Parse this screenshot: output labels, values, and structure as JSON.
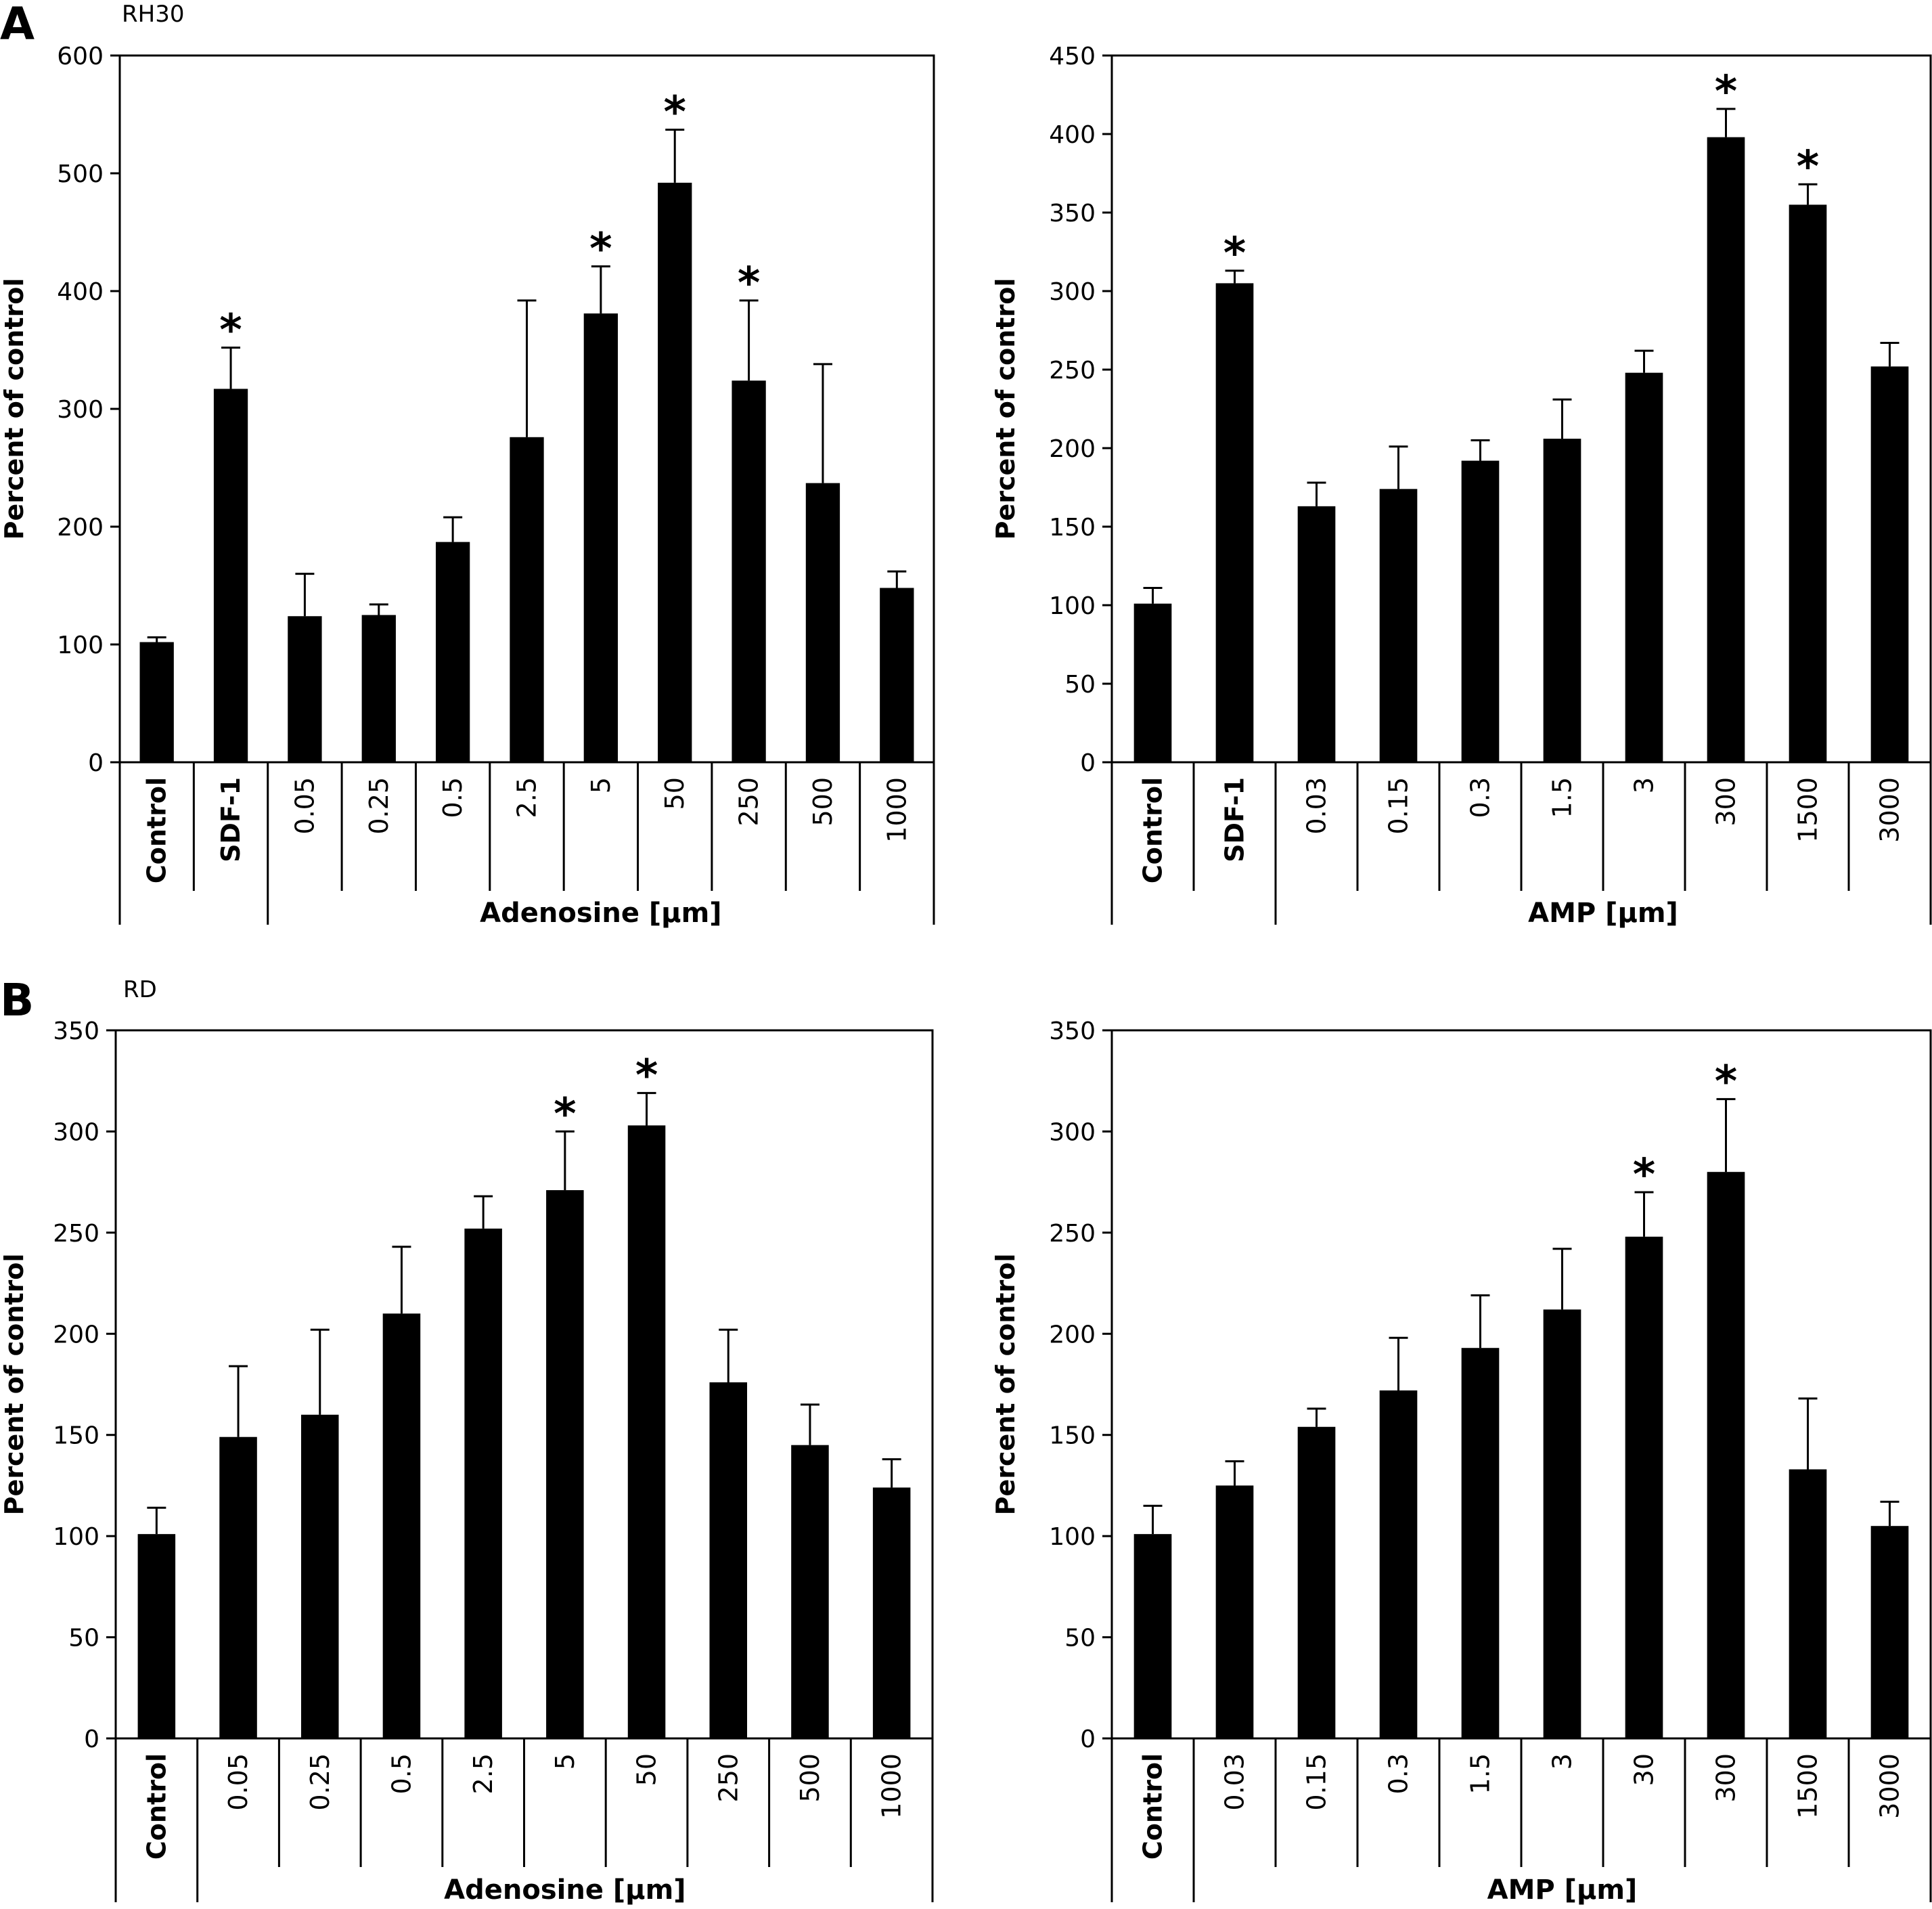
{
  "panel_labels": {
    "a": "A",
    "b": "B"
  },
  "sample_labels": {
    "a": "RH30",
    "b": "RD"
  },
  "colors": {
    "bar": "#000000",
    "axis": "#000000",
    "background": "#ffffff"
  },
  "chart_data": [
    {
      "type": "bar",
      "ylabel": "Percent of control",
      "group_label": "Adenosine [µm]",
      "ylim": [
        0,
        600
      ],
      "yticks": [
        0,
        100,
        200,
        300,
        400,
        500,
        600
      ],
      "categories": [
        "Control",
        "SDF-1",
        "0.05",
        "0.25",
        "0.5",
        "2.5",
        "5",
        "50",
        "250",
        "500",
        "1000"
      ],
      "bold_categories": [
        "Control",
        "SDF-1"
      ],
      "values": [
        102,
        317,
        124,
        125,
        187,
        276,
        381,
        492,
        324,
        237,
        148
      ],
      "errors": [
        4,
        35,
        36,
        9,
        21,
        116,
        40,
        45,
        68,
        101,
        14
      ],
      "significant": [
        false,
        true,
        false,
        false,
        false,
        false,
        true,
        true,
        true,
        false,
        false
      ],
      "significance_marker": "*",
      "group_start_index": 2
    },
    {
      "type": "bar",
      "ylabel": "Percent of control",
      "group_label": "AMP [µm]",
      "ylim": [
        0,
        450
      ],
      "yticks": [
        0,
        50,
        100,
        150,
        200,
        250,
        300,
        350,
        400,
        450
      ],
      "categories": [
        "Control",
        "SDF-1",
        "0.03",
        "0.15",
        "0.3",
        "1.5",
        "3",
        "300",
        "1500",
        "3000"
      ],
      "bold_categories": [
        "Control",
        "SDF-1"
      ],
      "values": [
        101,
        305,
        163,
        174,
        192,
        206,
        248,
        398,
        355,
        252
      ],
      "errors": [
        10,
        8,
        15,
        27,
        13,
        25,
        14,
        18,
        13,
        15
      ],
      "significant": [
        false,
        true,
        false,
        false,
        false,
        false,
        false,
        true,
        true,
        false
      ],
      "significance_marker": "*",
      "group_start_index": 2
    },
    {
      "type": "bar",
      "ylabel": "Percent of control",
      "group_label": "Adenosine [µm]",
      "ylim": [
        0,
        350
      ],
      "yticks": [
        0,
        50,
        100,
        150,
        200,
        250,
        300,
        350
      ],
      "categories": [
        "Control",
        "0.05",
        "0.25",
        "0.5",
        "2.5",
        "5",
        "50",
        "250",
        "500",
        "1000"
      ],
      "bold_categories": [
        "Control"
      ],
      "values": [
        101,
        149,
        160,
        210,
        252,
        271,
        303,
        176,
        145,
        124
      ],
      "errors": [
        13,
        35,
        42,
        33,
        16,
        29,
        16,
        26,
        20,
        14
      ],
      "significant": [
        false,
        false,
        false,
        false,
        false,
        true,
        true,
        false,
        false,
        false
      ],
      "significance_marker": "*",
      "group_start_index": 1
    },
    {
      "type": "bar",
      "ylabel": "Percent of control",
      "group_label": "AMP [µm]",
      "ylim": [
        0,
        350
      ],
      "yticks": [
        0,
        50,
        100,
        150,
        200,
        250,
        300,
        350
      ],
      "categories": [
        "Control",
        "0.03",
        "0.15",
        "0.3",
        "1.5",
        "3",
        "30",
        "300",
        "1500",
        "3000"
      ],
      "bold_categories": [
        "Control"
      ],
      "values": [
        101,
        125,
        154,
        172,
        193,
        212,
        248,
        280,
        133,
        105
      ],
      "errors": [
        14,
        12,
        9,
        26,
        26,
        30,
        22,
        36,
        35,
        12
      ],
      "significant": [
        false,
        false,
        false,
        false,
        false,
        false,
        true,
        true,
        false,
        false
      ],
      "significance_marker": "*",
      "group_start_index": 1
    }
  ]
}
